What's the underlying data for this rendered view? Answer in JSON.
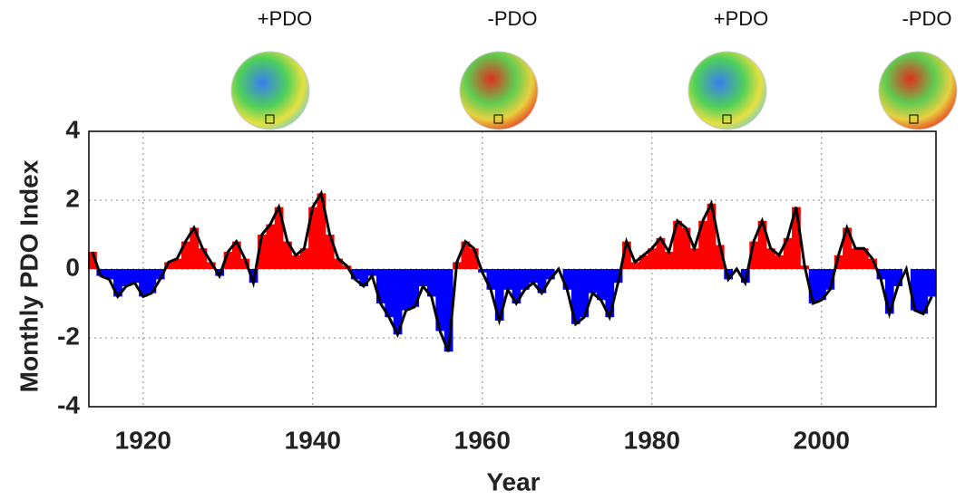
{
  "chart_data": {
    "type": "bar",
    "y_label": "Monthly PDO Index",
    "x_label": "Year",
    "annotations": [
      "+PDO",
      "-PDO",
      "+PDO",
      "-PDO"
    ],
    "x": [
      1914,
      1915,
      1916,
      1917,
      1918,
      1919,
      1920,
      1921,
      1922,
      1923,
      1924,
      1925,
      1926,
      1927,
      1928,
      1929,
      1930,
      1931,
      1932,
      1933,
      1934,
      1935,
      1936,
      1937,
      1938,
      1939,
      1940,
      1941,
      1942,
      1943,
      1944,
      1945,
      1946,
      1947,
      1948,
      1949,
      1950,
      1951,
      1952,
      1953,
      1954,
      1955,
      1956,
      1957,
      1958,
      1959,
      1960,
      1961,
      1962,
      1963,
      1964,
      1965,
      1966,
      1967,
      1968,
      1969,
      1970,
      1971,
      1972,
      1973,
      1974,
      1975,
      1976,
      1977,
      1978,
      1979,
      1980,
      1981,
      1982,
      1983,
      1984,
      1985,
      1986,
      1987,
      1988,
      1989,
      1990,
      1991,
      1992,
      1993,
      1994,
      1995,
      1996,
      1997,
      1998,
      1999,
      2000,
      2001,
      2002,
      2003,
      2004,
      2005,
      2006,
      2007,
      2008,
      2009,
      2010,
      2011,
      2012,
      2013
    ],
    "values": [
      0.5,
      -0.2,
      -0.3,
      -0.8,
      -0.5,
      -0.4,
      -0.8,
      -0.7,
      -0.3,
      0.2,
      0.3,
      0.8,
      1.2,
      0.6,
      0.2,
      -0.2,
      0.5,
      0.8,
      0.3,
      -0.4,
      1.0,
      1.3,
      1.8,
      0.8,
      0.4,
      0.6,
      1.8,
      2.2,
      1.0,
      0.3,
      0.1,
      -0.3,
      -0.5,
      -0.2,
      -1.0,
      -1.4,
      -1.9,
      -1.2,
      -1.1,
      -0.5,
      -0.8,
      -1.8,
      -2.4,
      0.2,
      0.8,
      0.6,
      -0.1,
      -0.6,
      -1.5,
      -0.6,
      -1.0,
      -0.6,
      -0.4,
      -0.7,
      -0.3,
      0.0,
      -0.6,
      -1.6,
      -1.4,
      -0.7,
      -0.9,
      -1.4,
      -0.4,
      0.8,
      0.2,
      0.4,
      0.6,
      0.9,
      0.5,
      1.4,
      1.2,
      0.6,
      1.4,
      1.9,
      0.7,
      -0.3,
      0.0,
      -0.4,
      0.8,
      1.4,
      0.6,
      0.4,
      0.9,
      1.8,
      0.1,
      -1.0,
      -0.9,
      -0.6,
      0.4,
      1.2,
      0.6,
      0.6,
      0.3,
      -0.3,
      -1.3,
      -0.5,
      0.0,
      -1.2,
      -1.3,
      -0.8
    ],
    "positive_color": "#ff0000",
    "negative_color": "#0000ff",
    "line_color": "#000000",
    "xlim": [
      1913.6,
      2013.5
    ],
    "xticks": [
      1920,
      1940,
      1960,
      1980,
      2000
    ],
    "ylim": [
      -4,
      4
    ],
    "yticks": [
      -4,
      -2,
      0,
      2,
      4
    ],
    "grid": true
  }
}
